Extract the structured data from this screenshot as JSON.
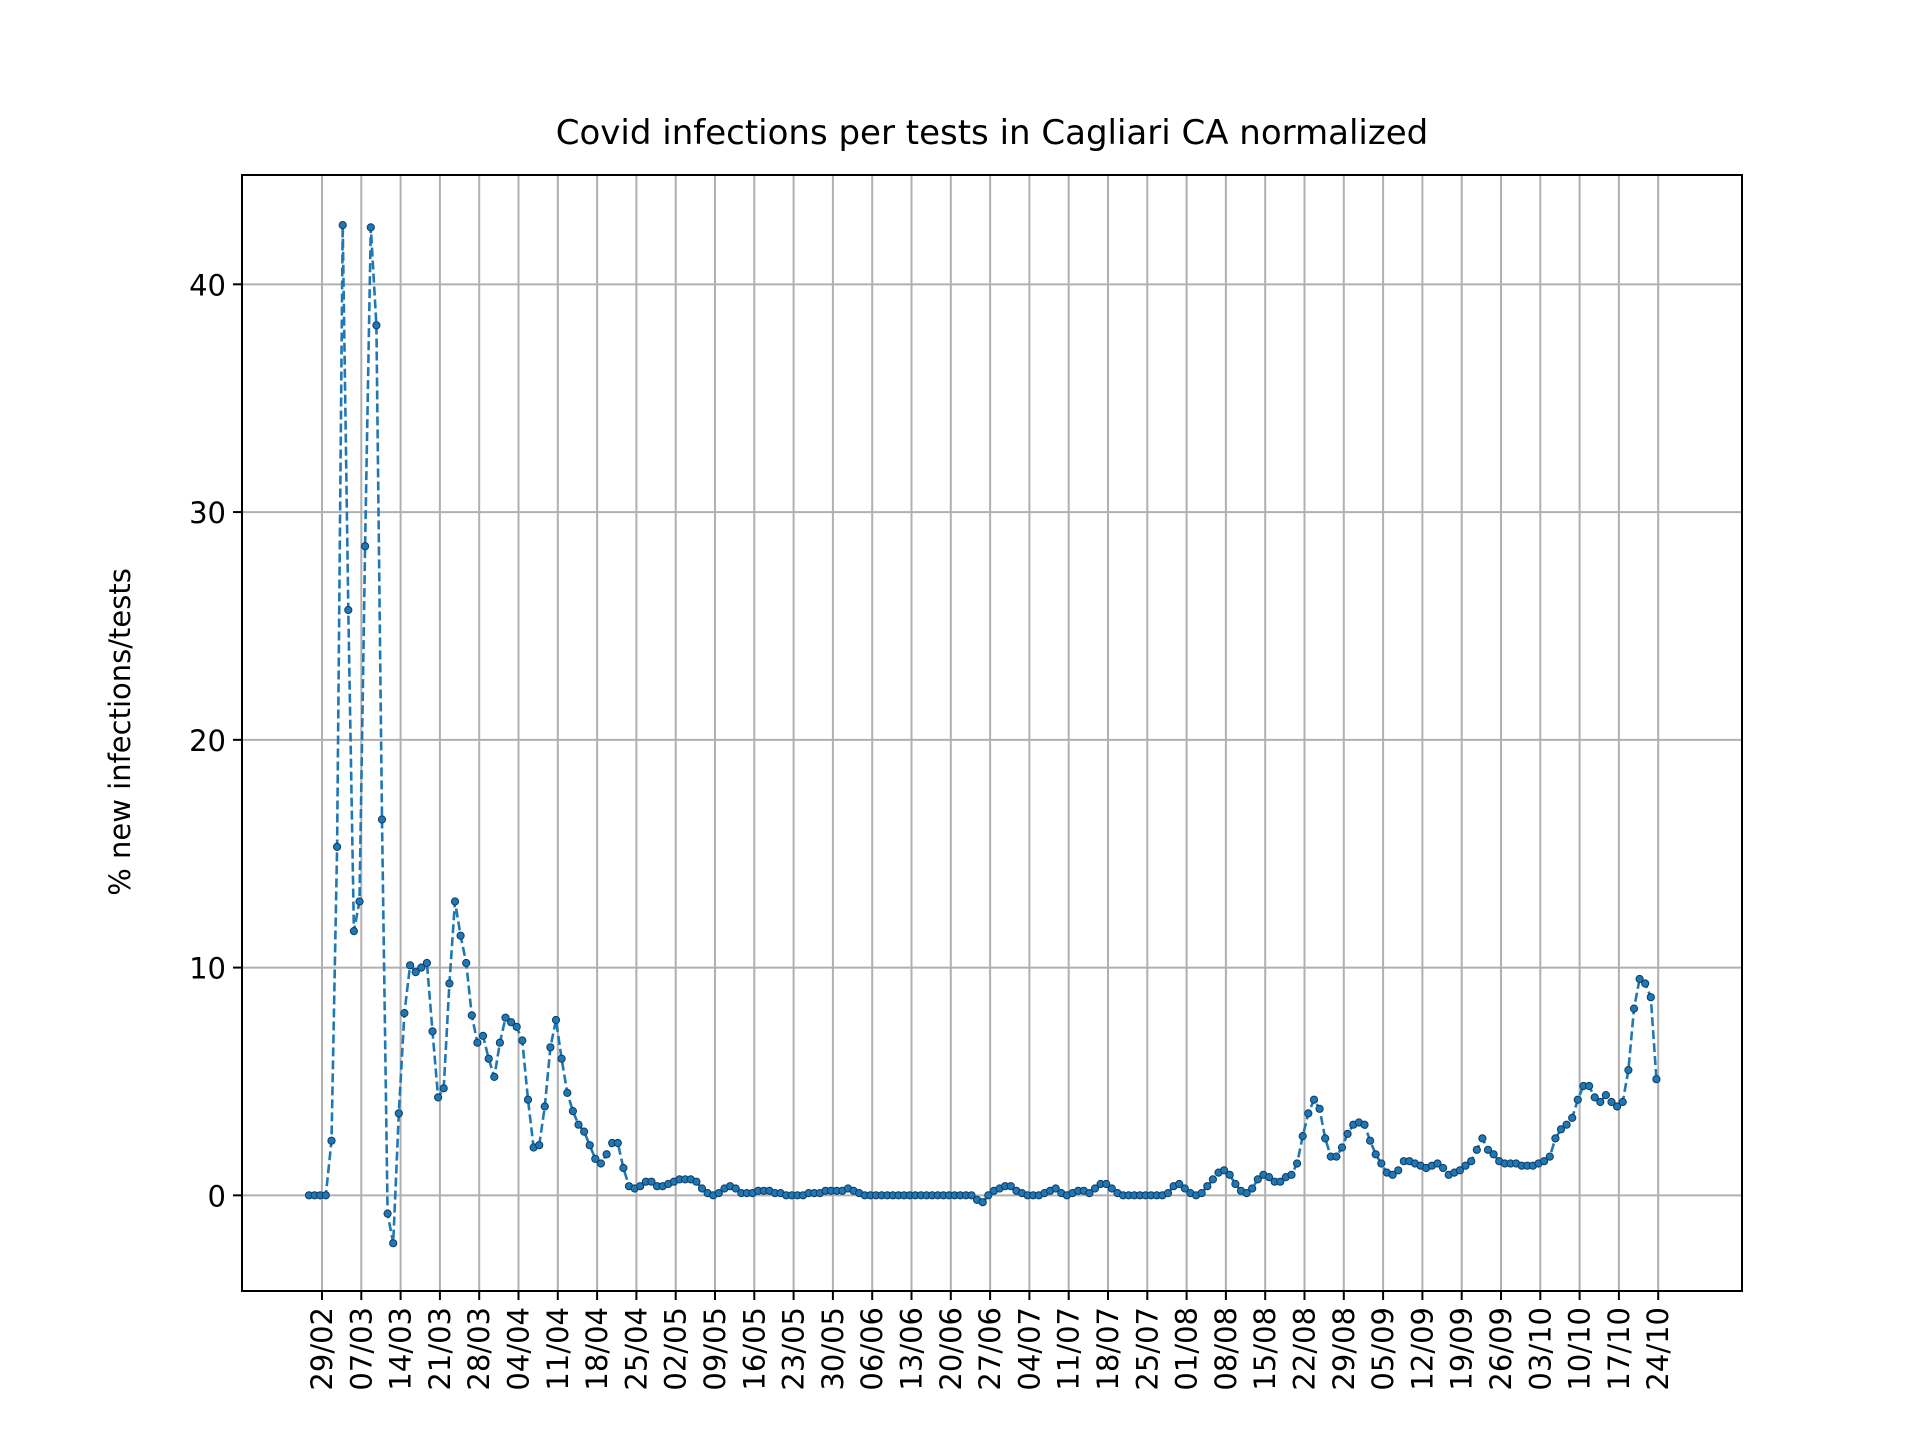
{
  "chart_data": {
    "type": "line",
    "title": "Covid infections per tests in Cagliari CA normalized",
    "xlabel": "",
    "ylabel": "% new infections/tests",
    "x_ticks": [
      "29/02",
      "07/03",
      "14/03",
      "21/03",
      "28/03",
      "04/04",
      "11/04",
      "18/04",
      "25/04",
      "02/05",
      "09/05",
      "16/05",
      "23/05",
      "30/05",
      "06/06",
      "13/06",
      "20/06",
      "27/06",
      "04/07",
      "11/07",
      "18/07",
      "25/07",
      "01/08",
      "08/08",
      "15/08",
      "22/08",
      "29/08",
      "05/09",
      "12/09",
      "19/09",
      "26/09",
      "03/10",
      "10/10",
      "17/10",
      "24/10"
    ],
    "y_ticks": [
      0,
      10,
      20,
      30,
      40
    ],
    "ylim": [
      -4.2,
      44.8
    ],
    "grid": true,
    "line_color": "#1f77b4",
    "line_style": "dashed",
    "marker_color": "#1f77b4",
    "series": [
      {
        "start_date": "26/02",
        "values": [
          0,
          0,
          0,
          0,
          2.4,
          15.3,
          42.6,
          25.7,
          11.6,
          12.9,
          28.5,
          42.5,
          38.2,
          16.5,
          -0.8,
          -2.1,
          3.6,
          8.0,
          10.1,
          9.8,
          10.0,
          10.2,
          7.2,
          4.3,
          4.7,
          9.3,
          12.9,
          11.4,
          10.2,
          7.9,
          6.7,
          7.0,
          6.0,
          5.2,
          6.7,
          7.8,
          7.6,
          7.4,
          6.8,
          4.2,
          2.1,
          2.2,
          3.9,
          6.5,
          7.7,
          6.0,
          4.5,
          3.7,
          3.1,
          2.8,
          2.2,
          1.6,
          1.4,
          1.8,
          2.3,
          2.3,
          1.2,
          0.4,
          0.3,
          0.4,
          0.6,
          0.6,
          0.4,
          0.4,
          0.5,
          0.6,
          0.7,
          0.7,
          0.7,
          0.6,
          0.3,
          0.1,
          0.0,
          0.1,
          0.3,
          0.4,
          0.3,
          0.1,
          0.1,
          0.1,
          0.2,
          0.2,
          0.2,
          0.1,
          0.1,
          0.0,
          0.0,
          0.0,
          0.0,
          0.1,
          0.1,
          0.1,
          0.2,
          0.2,
          0.2,
          0.2,
          0.3,
          0.2,
          0.1,
          0.0,
          0.0,
          0.0,
          0.0,
          0.0,
          0.0,
          0.0,
          0.0,
          0.0,
          0.0,
          0.0,
          0.0,
          0.0,
          0.0,
          0.0,
          0.0,
          0.0,
          0.0,
          0.0,
          0.0,
          -0.2,
          -0.3,
          0.0,
          0.2,
          0.3,
          0.4,
          0.4,
          0.2,
          0.1,
          0.0,
          0.0,
          0.0,
          0.1,
          0.2,
          0.3,
          0.1,
          0.0,
          0.1,
          0.2,
          0.2,
          0.1,
          0.3,
          0.5,
          0.5,
          0.3,
          0.1,
          0.0,
          0.0,
          0.0,
          0.0,
          0.0,
          0.0,
          0.0,
          0.0,
          0.1,
          0.4,
          0.5,
          0.3,
          0.1,
          0.0,
          0.1,
          0.4,
          0.7,
          1.0,
          1.1,
          0.9,
          0.5,
          0.2,
          0.1,
          0.3,
          0.7,
          0.9,
          0.8,
          0.6,
          0.6,
          0.8,
          0.9,
          1.4,
          2.6,
          3.6,
          4.2,
          3.8,
          2.5,
          1.7,
          1.7,
          2.1,
          2.7,
          3.1,
          3.2,
          3.1,
          2.4,
          1.8,
          1.4,
          1.0,
          0.9,
          1.1,
          1.5,
          1.5,
          1.4,
          1.3,
          1.2,
          1.3,
          1.4,
          1.2,
          0.9,
          1.0,
          1.1,
          1.3,
          1.5,
          2.0,
          2.5,
          2.0,
          1.8,
          1.5,
          1.4,
          1.4,
          1.4,
          1.3,
          1.3,
          1.3,
          1.4,
          1.5,
          1.7,
          2.5,
          2.9,
          3.1,
          3.4,
          4.2,
          4.8,
          4.8,
          4.3,
          4.1,
          4.4,
          4.1,
          3.9,
          4.1,
          5.5,
          8.2,
          9.5,
          9.3,
          8.7,
          5.1
        ]
      }
    ]
  }
}
